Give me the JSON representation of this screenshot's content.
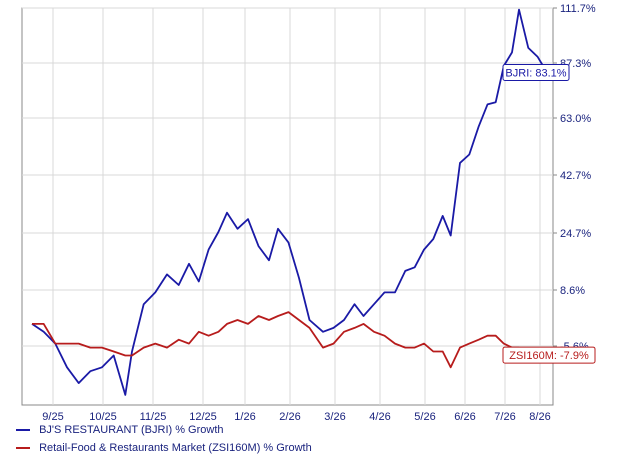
{
  "chart_data": {
    "type": "line",
    "x_ticks": [
      "9/25",
      "10/25",
      "11/25",
      "12/25",
      "1/26",
      "2/26",
      "3/26",
      "4/26",
      "5/26",
      "6/26",
      "7/26",
      "8/26"
    ],
    "y_ticks": [
      "111.7%",
      "87.3%",
      "63.0%",
      "42.7%",
      "24.7%",
      "8.6%",
      "-5.6%"
    ],
    "grid": true,
    "series": [
      {
        "name": "BJ'S RESTAURANT (BJRI) % Growth",
        "color": "#1a1aa6",
        "end_label": "BJRI: 83.1%",
        "points": [
          [
            "9/1/25",
            0
          ],
          [
            "9/8/25",
            -2
          ],
          [
            "9/15/25",
            -5
          ],
          [
            "9/22/25",
            -11
          ],
          [
            "9/29/25",
            -15
          ],
          [
            "10/6/25",
            -12
          ],
          [
            "10/13/25",
            -11
          ],
          [
            "10/20/25",
            -8
          ],
          [
            "10/27/25",
            -18
          ],
          [
            "11/1/25",
            -7
          ],
          [
            "11/8/25",
            5
          ],
          [
            "11/15/25",
            8
          ],
          [
            "11/22/25",
            13
          ],
          [
            "11/29/25",
            10
          ],
          [
            "12/6/25",
            16
          ],
          [
            "12/13/25",
            11
          ],
          [
            "12/20/25",
            20
          ],
          [
            "12/27/25",
            25
          ],
          [
            "1/3/26",
            31
          ],
          [
            "1/10/26",
            26
          ],
          [
            "1/17/26",
            29
          ],
          [
            "1/24/26",
            21
          ],
          [
            "1/31/26",
            17
          ],
          [
            "2/7/26",
            26
          ],
          [
            "2/14/26",
            22
          ],
          [
            "2/21/26",
            12
          ],
          [
            "2/28/26",
            1
          ],
          [
            "3/7/26",
            -2
          ],
          [
            "3/14/26",
            -1
          ],
          [
            "3/21/26",
            1
          ],
          [
            "3/28/26",
            5
          ],
          [
            "4/4/26",
            2
          ],
          [
            "4/11/26",
            5
          ],
          [
            "4/18/26",
            8
          ],
          [
            "4/25/26",
            8
          ],
          [
            "5/2/26",
            14
          ],
          [
            "5/9/26",
            15
          ],
          [
            "5/16/26",
            20
          ],
          [
            "5/23/26",
            23
          ],
          [
            "5/30/26",
            30
          ],
          [
            "6/6/26",
            24
          ],
          [
            "6/13/26",
            47
          ],
          [
            "6/20/26",
            50
          ],
          [
            "6/27/26",
            60
          ],
          [
            "7/4/26",
            69
          ],
          [
            "7/11/26",
            70
          ],
          [
            "7/18/26",
            86
          ],
          [
            "7/25/26",
            92
          ],
          [
            "8/1/26",
            111
          ],
          [
            "8/8/26",
            94
          ],
          [
            "8/15/26",
            90
          ],
          [
            "8/22/26",
            83.1
          ]
        ]
      },
      {
        "name": "Retail-Food & Restaurants Market (ZSI160M) % Growth",
        "color": "#b71c1c",
        "end_label": "ZSI160M: -7.9%",
        "points": [
          [
            "9/1/25",
            0
          ],
          [
            "9/8/25",
            0
          ],
          [
            "9/15/25",
            -5
          ],
          [
            "9/22/25",
            -5
          ],
          [
            "9/29/25",
            -5
          ],
          [
            "10/6/25",
            -6
          ],
          [
            "10/13/25",
            -6
          ],
          [
            "10/20/25",
            -7
          ],
          [
            "10/27/25",
            -8
          ],
          [
            "11/1/25",
            -8
          ],
          [
            "11/8/25",
            -6
          ],
          [
            "11/15/25",
            -5
          ],
          [
            "11/22/25",
            -6
          ],
          [
            "11/29/25",
            -4
          ],
          [
            "12/6/25",
            -5
          ],
          [
            "12/13/25",
            -2
          ],
          [
            "12/20/25",
            -3
          ],
          [
            "12/27/25",
            -2
          ],
          [
            "1/3/26",
            0
          ],
          [
            "1/10/26",
            1
          ],
          [
            "1/17/26",
            0
          ],
          [
            "1/24/26",
            2
          ],
          [
            "1/31/26",
            1
          ],
          [
            "2/7/26",
            2
          ],
          [
            "2/14/26",
            3
          ],
          [
            "2/21/26",
            1
          ],
          [
            "2/28/26",
            -1
          ],
          [
            "3/7/26",
            -6
          ],
          [
            "3/14/26",
            -5
          ],
          [
            "3/21/26",
            -2
          ],
          [
            "3/28/26",
            -1
          ],
          [
            "4/4/26",
            0
          ],
          [
            "4/11/26",
            -2
          ],
          [
            "4/18/26",
            -3
          ],
          [
            "4/25/26",
            -5
          ],
          [
            "5/2/26",
            -6
          ],
          [
            "5/9/26",
            -6
          ],
          [
            "5/16/26",
            -5
          ],
          [
            "5/23/26",
            -7
          ],
          [
            "5/30/26",
            -7
          ],
          [
            "6/6/26",
            -11
          ],
          [
            "6/13/26",
            -6
          ],
          [
            "6/20/26",
            -5
          ],
          [
            "6/27/26",
            -4
          ],
          [
            "7/4/26",
            -3
          ],
          [
            "7/11/26",
            -3
          ],
          [
            "7/18/26",
            -5
          ],
          [
            "7/25/26",
            -6
          ],
          [
            "8/1/26",
            -6
          ],
          [
            "8/8/26",
            -9
          ],
          [
            "8/15/26",
            -8
          ],
          [
            "8/22/26",
            -7.9
          ]
        ]
      }
    ]
  }
}
